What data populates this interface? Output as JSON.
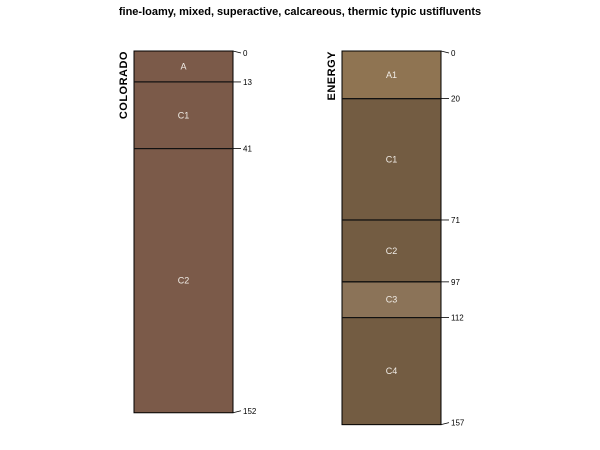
{
  "title": "fine-loamy, mixed, superactive, calcareous, thermic typic ustifluvents",
  "chart_data": {
    "type": "soil-profile",
    "depth_unit": "cm",
    "profiles": [
      {
        "name": "COLORADO",
        "horizons": [
          {
            "name": "A",
            "top": 0,
            "bottom": 13,
            "color": "#7b5a49"
          },
          {
            "name": "C1",
            "top": 13,
            "bottom": 41,
            "color": "#7b5a49"
          },
          {
            "name": "C2",
            "top": 41,
            "bottom": 152,
            "color": "#7b5a49"
          }
        ]
      },
      {
        "name": "ENERGY",
        "horizons": [
          {
            "name": "A1",
            "top": 0,
            "bottom": 20,
            "color": "#8f7452"
          },
          {
            "name": "C1",
            "top": 20,
            "bottom": 71,
            "color": "#735c42"
          },
          {
            "name": "C2",
            "top": 71,
            "bottom": 97,
            "color": "#735c42"
          },
          {
            "name": "C3",
            "top": 97,
            "bottom": 112,
            "color": "#8b7358"
          },
          {
            "name": "C4",
            "top": 112,
            "bottom": 157,
            "color": "#735c42"
          }
        ]
      }
    ]
  }
}
